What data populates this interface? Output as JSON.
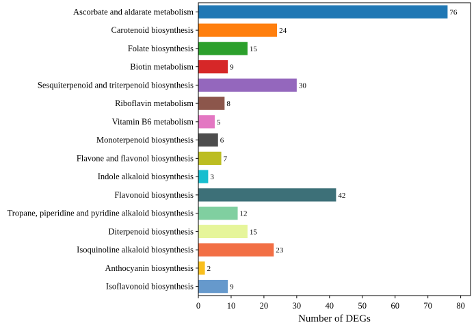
{
  "chart_data": {
    "type": "bar",
    "orientation": "horizontal",
    "categories": [
      "Ascorbate and aldarate metabolism",
      "Carotenoid biosynthesis",
      "Folate biosynthesis",
      "Biotin metabolism",
      "Sesquiterpenoid and triterpenoid biosynthesis",
      "Riboflavin metabolism",
      "Vitamin B6 metabolism",
      "Monoterpenoid biosynthesis",
      "Flavone and flavonol biosynthesis",
      "Indole alkaloid biosynthesis",
      "Flavonoid biosynthesis",
      "Tropane, piperidine and pyridine alkaloid biosynthesis",
      "Diterpenoid biosynthesis",
      "Isoquinoline alkaloid biosynthesis",
      "Anthocyanin biosynthesis",
      "Isoflavonoid biosynthesis"
    ],
    "values": [
      76,
      24,
      15,
      9,
      30,
      8,
      5,
      6,
      7,
      3,
      42,
      12,
      15,
      23,
      2,
      9
    ],
    "colors": [
      "#1f77b4",
      "#ff7f0e",
      "#2ca02c",
      "#d62728",
      "#9467bd",
      "#8c564b",
      "#e377c2",
      "#4d4d4d",
      "#bcbd22",
      "#17becf",
      "#3d7078",
      "#80cfa0",
      "#e6f59a",
      "#f26f45",
      "#f9bf1e",
      "#6699cc"
    ],
    "xlabel": "Number of DEGs",
    "xlim": [
      0,
      83
    ],
    "xticks": [
      0,
      10,
      20,
      30,
      40,
      50,
      60,
      70,
      80
    ],
    "grid": false,
    "legend": "none"
  }
}
